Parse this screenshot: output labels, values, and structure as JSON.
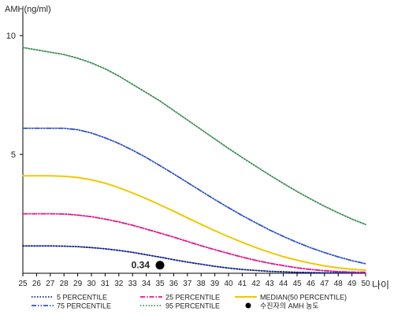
{
  "chart_data": {
    "type": "line",
    "ylabel": "AMH(ng/ml)",
    "xlabel": "나이",
    "ylim": [
      0,
      11
    ],
    "xlim": [
      25,
      50
    ],
    "x": [
      25,
      26,
      27,
      28,
      29,
      30,
      31,
      32,
      33,
      34,
      35,
      36,
      37,
      38,
      39,
      40,
      41,
      42,
      43,
      44,
      45,
      46,
      47,
      48,
      49,
      50
    ],
    "xticks": [
      25,
      26,
      27,
      28,
      29,
      30,
      31,
      32,
      33,
      34,
      35,
      36,
      37,
      38,
      39,
      40,
      41,
      42,
      43,
      44,
      45,
      46,
      47,
      48,
      49,
      50
    ],
    "yticks": [
      5,
      10
    ],
    "series": [
      {
        "name": "5 PERCENTILE",
        "color": "#0a1f8f",
        "style": "dotted",
        "values": [
          1.15,
          1.15,
          1.15,
          1.14,
          1.12,
          1.08,
          1.03,
          0.96,
          0.88,
          0.78,
          0.68,
          0.57,
          0.47,
          0.38,
          0.29,
          0.22,
          0.16,
          0.12,
          0.08,
          0.06,
          0.04,
          0.03,
          0.02,
          0.02,
          0.01,
          0.01
        ]
      },
      {
        "name": "25 PERCENTILE",
        "color": "#e0168c",
        "style": "dashdot",
        "values": [
          2.5,
          2.5,
          2.5,
          2.49,
          2.45,
          2.38,
          2.28,
          2.16,
          2.02,
          1.86,
          1.69,
          1.52,
          1.34,
          1.16,
          0.99,
          0.83,
          0.68,
          0.54,
          0.42,
          0.32,
          0.23,
          0.16,
          0.11,
          0.07,
          0.05,
          0.04
        ]
      },
      {
        "name": "MEDIAN(50 PERCENTILE)",
        "color": "#f0c800",
        "style": "solid",
        "values": [
          4.1,
          4.1,
          4.1,
          4.08,
          4.03,
          3.93,
          3.79,
          3.6,
          3.38,
          3.14,
          2.88,
          2.61,
          2.33,
          2.06,
          1.79,
          1.54,
          1.3,
          1.08,
          0.88,
          0.7,
          0.55,
          0.42,
          0.31,
          0.23,
          0.17,
          0.13
        ]
      },
      {
        "name": "75 PERCENTILE",
        "color": "#2f55c9",
        "style": "dashdotdot",
        "values": [
          6.1,
          6.1,
          6.1,
          6.1,
          6.04,
          5.9,
          5.7,
          5.46,
          5.18,
          4.87,
          4.53,
          4.18,
          3.82,
          3.46,
          3.1,
          2.76,
          2.43,
          2.12,
          1.82,
          1.55,
          1.3,
          1.07,
          0.87,
          0.69,
          0.53,
          0.4
        ]
      },
      {
        "name": "95 PERCENTILE",
        "color": "#3b8f55",
        "style": "dotted",
        "values": [
          9.5,
          9.4,
          9.3,
          9.2,
          9.05,
          8.85,
          8.6,
          8.3,
          7.95,
          7.6,
          7.25,
          6.85,
          6.45,
          6.05,
          5.65,
          5.25,
          4.87,
          4.5,
          4.13,
          3.78,
          3.44,
          3.12,
          2.82,
          2.54,
          2.28,
          2.05
        ]
      }
    ],
    "point": {
      "label": "수진자의 AMH 농도",
      "x": 35,
      "y": 0.34,
      "value_label": "0.34",
      "color": "#000000"
    },
    "legend": [
      {
        "label": "5 PERCENTILE",
        "ref": 0
      },
      {
        "label": "25 PERCENTILE",
        "ref": 1
      },
      {
        "label": "MEDIAN(50 PERCENTILE)",
        "ref": 2
      },
      {
        "label": "75 PERCENTILE",
        "ref": 3
      },
      {
        "label": "95 PERCENTILE",
        "ref": 4
      },
      {
        "label": "수진자의 AMH 농도",
        "ref": "point"
      }
    ],
    "legend_position": "bottom"
  }
}
